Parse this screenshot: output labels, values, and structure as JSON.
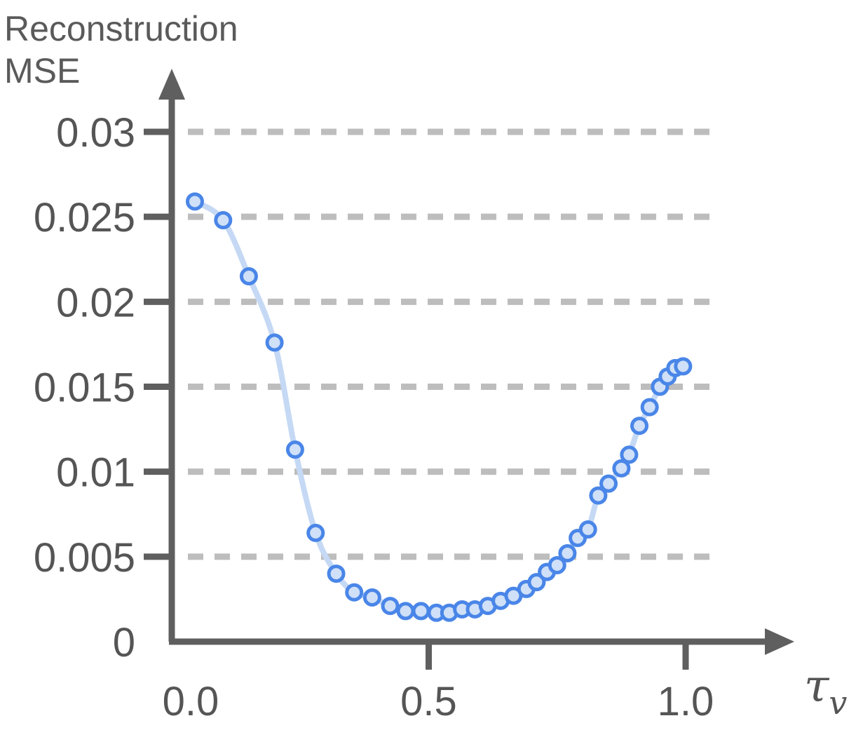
{
  "chart_data": {
    "type": "line",
    "title": "",
    "ylabel_lines": [
      "Reconstruction",
      "MSE"
    ],
    "xlabel_symbol": "τ",
    "xlabel_subscript": "v",
    "xlim": [
      0.0,
      1.0
    ],
    "ylim": [
      0,
      0.03
    ],
    "x_ticks": [
      {
        "value": 0.0,
        "label": "0.0"
      },
      {
        "value": 0.5,
        "label": "0.5"
      },
      {
        "value": 1.0,
        "label": "1.0"
      }
    ],
    "y_ticks": [
      {
        "value": 0,
        "label": "0"
      },
      {
        "value": 0.005,
        "label": "0.005"
      },
      {
        "value": 0.01,
        "label": "0.01"
      },
      {
        "value": 0.015,
        "label": "0.015"
      },
      {
        "value": 0.02,
        "label": "0.02"
      },
      {
        "value": 0.025,
        "label": "0.025"
      },
      {
        "value": 0.03,
        "label": "0.03"
      }
    ],
    "grid": "horizontal-dashed",
    "legend": "none",
    "colors": {
      "axis": "#5f5f5f",
      "grid": "#bdbdbd",
      "line": "#c5d9f5",
      "marker_edge": "#4a86e8",
      "marker_fill": "#cfe0f8"
    },
    "series": [
      {
        "x": [
          0.045,
          0.1,
          0.15,
          0.2,
          0.24,
          0.28,
          0.32,
          0.355,
          0.39,
          0.425,
          0.455,
          0.485,
          0.515,
          0.54,
          0.565,
          0.59,
          0.615,
          0.64,
          0.665,
          0.69,
          0.71,
          0.73,
          0.75,
          0.77,
          0.79,
          0.81,
          0.83,
          0.85,
          0.875,
          0.89,
          0.91,
          0.93,
          0.95,
          0.965,
          0.98,
          0.995
        ],
        "y": [
          0.0259,
          0.0248,
          0.0215,
          0.0176,
          0.0113,
          0.0064,
          0.004,
          0.0029,
          0.0026,
          0.0021,
          0.0018,
          0.0018,
          0.0017,
          0.0017,
          0.0019,
          0.0019,
          0.0021,
          0.0024,
          0.0027,
          0.0031,
          0.0035,
          0.0041,
          0.0045,
          0.0052,
          0.0061,
          0.0066,
          0.0086,
          0.0093,
          0.0102,
          0.011,
          0.0127,
          0.0138,
          0.015,
          0.0156,
          0.0161,
          0.0162
        ]
      }
    ]
  }
}
